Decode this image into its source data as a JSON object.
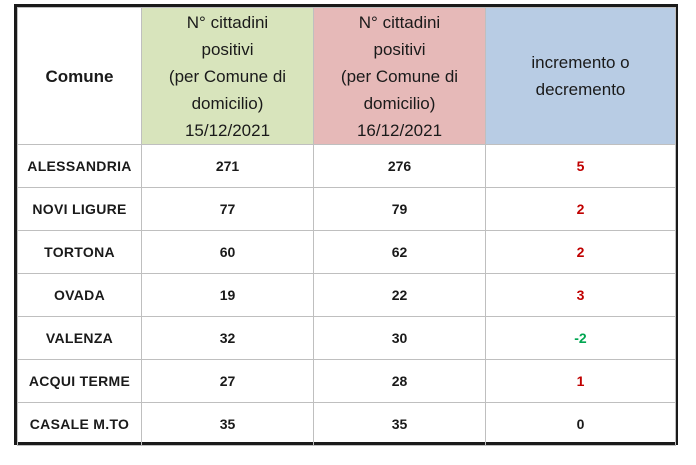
{
  "table": {
    "headers": {
      "comune": "Comune",
      "day1": [
        "N° cittadini",
        "positivi",
        "(per Comune di",
        "domicilio)",
        "15/12/2021"
      ],
      "day2": [
        "N° cittadini",
        "positivi",
        "(per Comune di",
        "domicilio)",
        "16/12/2021"
      ],
      "delta": [
        "incremento o",
        "decremento"
      ]
    },
    "rows": [
      {
        "comune": "ALESSANDRIA",
        "day1": "271",
        "day2": "276",
        "delta": "5",
        "trend": "up"
      },
      {
        "comune": "NOVI LIGURE",
        "day1": "77",
        "day2": "79",
        "delta": "2",
        "trend": "up"
      },
      {
        "comune": "TORTONA",
        "day1": "60",
        "day2": "62",
        "delta": "2",
        "trend": "up"
      },
      {
        "comune": "OVADA",
        "day1": "19",
        "day2": "22",
        "delta": "3",
        "trend": "up"
      },
      {
        "comune": "VALENZA",
        "day1": "32",
        "day2": "30",
        "delta": "-2",
        "trend": "down"
      },
      {
        "comune": "ACQUI TERME",
        "day1": "27",
        "day2": "28",
        "delta": "1",
        "trend": "up"
      },
      {
        "comune": "CASALE M.TO",
        "day1": "35",
        "day2": "35",
        "delta": "0",
        "trend": "zero"
      }
    ]
  },
  "colors": {
    "header_day1": "#d8e4bc",
    "header_day2": "#e6b9b8",
    "header_delta": "#b8cce4",
    "increase": "#c00000",
    "decrease": "#00a651",
    "no_change": "#1a1a1a",
    "frame": "#1a1a1a"
  }
}
